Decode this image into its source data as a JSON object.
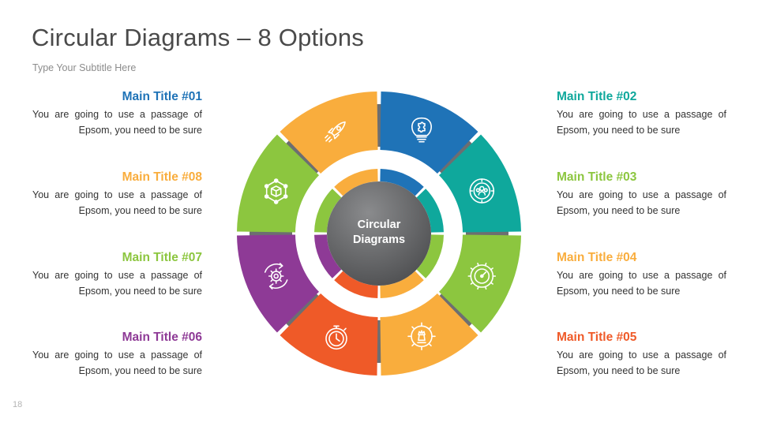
{
  "header": {
    "title": "Circular Diagrams – 8 Options",
    "subtitle": "Type Your Subtitle Here"
  },
  "page_number": "18",
  "center": {
    "line1": "Circular",
    "line2": "Diagrams"
  },
  "items": [
    {
      "title": "Main Title #01",
      "line1": "You are going to use a passage of",
      "line2": "Epsom, you need to be sure",
      "color": "#1f73b7",
      "icon": "lightbulb-puzzle-icon"
    },
    {
      "title": "Main Title #02",
      "line1": "You are going to use a passage of",
      "line2": "Epsom, you need to be sure",
      "color": "#0fa89c",
      "icon": "team-target-icon"
    },
    {
      "title": "Main Title #03",
      "line1": "You are going to use a passage of",
      "line2": "Epsom, you need to be sure",
      "color": "#8cc63f",
      "icon": "gear-gauge-icon"
    },
    {
      "title": "Main Title #04",
      "line1": "You are going to use a passage of",
      "line2": "Epsom, you need to be sure",
      "color": "#f9ad3d",
      "icon": "chess-gear-icon"
    },
    {
      "title": "Main Title #05",
      "line1": "You are going to use a passage of",
      "line2": "Epsom, you need to be sure",
      "color": "#ef5a28",
      "icon": "stopwatch-icon"
    },
    {
      "title": "Main Title #06",
      "line1": "You are going to use a passage of",
      "line2": "Epsom, you need to be sure",
      "color": "#8e3a96",
      "icon": "gear-cycle-icon"
    },
    {
      "title": "Main Title #07",
      "line1": "You are going to use a passage of",
      "line2": "Epsom, you need to be sure",
      "color": "#8cc63f",
      "icon": "box-network-icon"
    },
    {
      "title": "Main Title #08",
      "line1": "You are going to use a passage of",
      "line2": "Epsom, you need to be sure",
      "color": "#f9ad3d",
      "icon": "rocket-icon"
    }
  ],
  "colors": {
    "title_text": "#4a4a4a",
    "subtitle_text": "#8c8c8c",
    "connector": "#6d6e71",
    "center_dark": "#58595b",
    "center_light": "#8a8b8d"
  }
}
